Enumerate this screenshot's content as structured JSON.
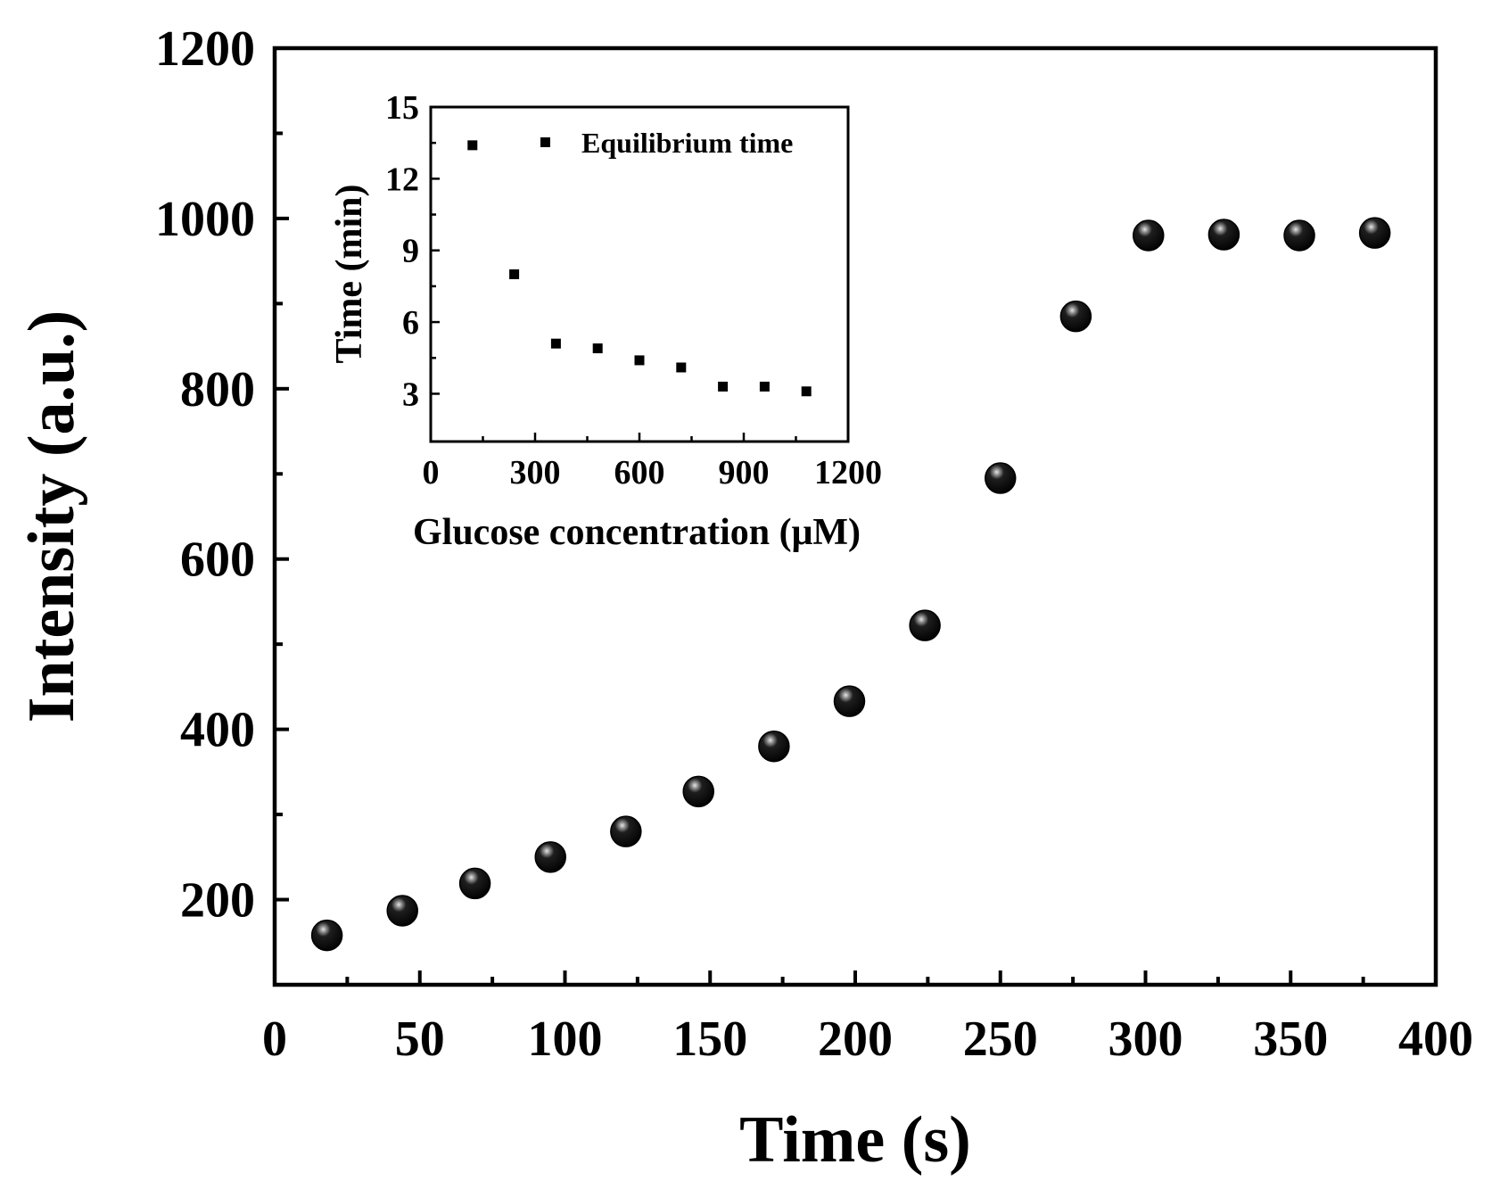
{
  "chart_data": [
    {
      "type": "scatter",
      "xlabel": "Time (s)",
      "ylabel": "Intensity (a.u.)",
      "xlim": [
        0,
        400
      ],
      "ylim": [
        100,
        1200
      ],
      "xticks": [
        0,
        50,
        100,
        150,
        200,
        250,
        300,
        350,
        400
      ],
      "yticks": [
        200,
        400,
        600,
        800,
        1000,
        1200
      ],
      "xtick_labels": [
        "0",
        "50",
        "100",
        "150",
        "200",
        "250",
        "300",
        "350",
        "400"
      ],
      "ytick_labels": [
        "200",
        "400",
        "600",
        "800",
        "1000",
        "1200"
      ],
      "marker": "sphere",
      "marker_color": "#000000",
      "series": [
        {
          "name": "Intensity",
          "x": [
            18,
            44,
            69,
            95,
            121,
            146,
            172,
            198,
            224,
            250,
            276,
            301,
            327,
            353,
            379
          ],
          "y": [
            158,
            187,
            219,
            250,
            280,
            327,
            380,
            433,
            522,
            695,
            885,
            980,
            981,
            980,
            983
          ]
        }
      ]
    },
    {
      "type": "scatter",
      "xlabel": "Glucose concentration (μM)",
      "ylabel": "Time (min)",
      "xlim": [
        0,
        1200
      ],
      "ylim": [
        1,
        15
      ],
      "xticks": [
        0,
        300,
        600,
        900,
        1200
      ],
      "yticks": [
        3,
        6,
        9,
        12,
        15
      ],
      "xtick_labels": [
        "0",
        "300",
        "600",
        "900",
        "1200"
      ],
      "ytick_labels": [
        "3",
        "6",
        "9",
        "12",
        "15"
      ],
      "marker": "square",
      "marker_color": "#000000",
      "legend": "top-right",
      "series": [
        {
          "name": "Equilibrium time",
          "x": [
            120,
            240,
            360,
            480,
            600,
            720,
            840,
            960,
            1080
          ],
          "y": [
            13.4,
            8.0,
            5.1,
            4.9,
            4.4,
            4.1,
            3.3,
            3.3,
            3.1
          ]
        }
      ]
    }
  ]
}
